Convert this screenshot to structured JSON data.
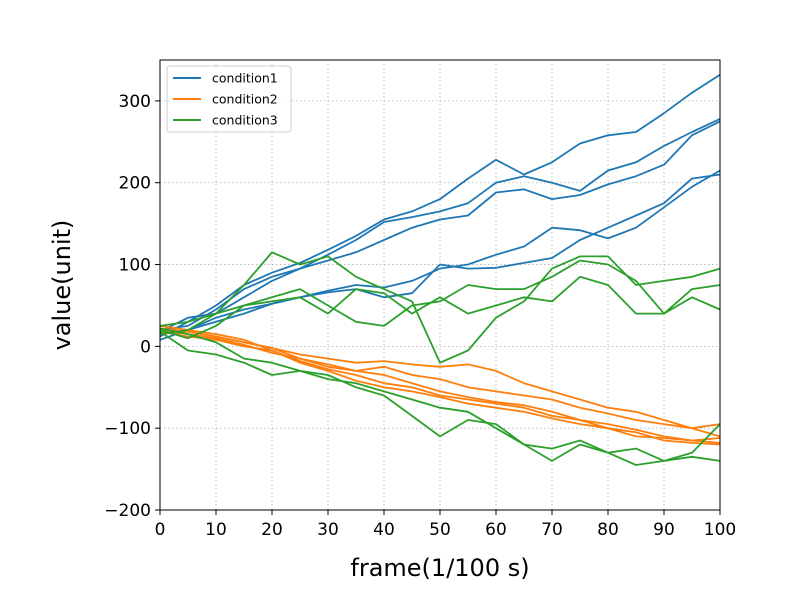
{
  "chart_data": {
    "type": "line",
    "title": "",
    "xlabel": "frame(1/100 s)",
    "ylabel": "value(unit)",
    "xlim": [
      0,
      100
    ],
    "ylim": [
      -200,
      350
    ],
    "xticks": [
      0,
      10,
      20,
      30,
      40,
      50,
      60,
      70,
      80,
      90,
      100
    ],
    "yticks": [
      -200,
      -100,
      0,
      100,
      200,
      300
    ],
    "ytick_labels": [
      "−200",
      "−100",
      "0",
      "100",
      "200",
      "300"
    ],
    "grid": true,
    "legend_position": "top-left",
    "legend": [
      {
        "label": "condition1",
        "color": "#1f77b4"
      },
      {
        "label": "condition2",
        "color": "#ff7f0e"
      },
      {
        "label": "condition3",
        "color": "#2ca02c"
      }
    ],
    "series": [
      {
        "group": "condition1",
        "color": "#1f77b4",
        "x": [
          0,
          5,
          10,
          15,
          20,
          25,
          30,
          35,
          40,
          45,
          50,
          55,
          60,
          65,
          70,
          75,
          80,
          85,
          90,
          95,
          100
        ],
        "y": [
          12,
          30,
          50,
          75,
          90,
          102,
          118,
          135,
          155,
          165,
          180,
          205,
          228,
          210,
          225,
          248,
          258,
          262,
          285,
          310,
          332
        ]
      },
      {
        "group": "condition1",
        "color": "#1f77b4",
        "x": [
          0,
          5,
          10,
          15,
          20,
          25,
          30,
          35,
          40,
          45,
          50,
          55,
          60,
          65,
          70,
          75,
          80,
          85,
          90,
          95,
          100
        ],
        "y": [
          18,
          35,
          40,
          60,
          80,
          95,
          112,
          130,
          152,
          158,
          165,
          175,
          200,
          208,
          200,
          190,
          215,
          225,
          245,
          262,
          278
        ]
      },
      {
        "group": "condition1",
        "color": "#1f77b4",
        "x": [
          0,
          5,
          10,
          15,
          20,
          25,
          30,
          35,
          40,
          45,
          50,
          55,
          60,
          65,
          70,
          75,
          80,
          85,
          90,
          95,
          100
        ],
        "y": [
          20,
          25,
          45,
          70,
          85,
          95,
          105,
          115,
          130,
          145,
          155,
          160,
          188,
          192,
          180,
          185,
          198,
          208,
          222,
          258,
          275
        ]
      },
      {
        "group": "condition1",
        "color": "#1f77b4",
        "x": [
          0,
          5,
          10,
          15,
          20,
          25,
          30,
          35,
          40,
          45,
          50,
          55,
          60,
          65,
          70,
          75,
          80,
          85,
          90,
          95,
          100
        ],
        "y": [
          8,
          20,
          30,
          40,
          52,
          60,
          68,
          75,
          72,
          80,
          95,
          100,
          112,
          122,
          145,
          142,
          132,
          145,
          170,
          195,
          215
        ]
      },
      {
        "group": "condition1",
        "color": "#1f77b4",
        "x": [
          0,
          5,
          10,
          15,
          20,
          25,
          30,
          35,
          40,
          45,
          50,
          55,
          60,
          65,
          70,
          75,
          80,
          85,
          90,
          95,
          100
        ],
        "y": [
          15,
          20,
          35,
          45,
          52,
          60,
          66,
          70,
          60,
          65,
          100,
          95,
          96,
          102,
          108,
          130,
          145,
          160,
          175,
          205,
          210
        ]
      },
      {
        "group": "condition2",
        "color": "#ff7f0e",
        "x": [
          0,
          5,
          10,
          15,
          20,
          25,
          30,
          35,
          40,
          45,
          50,
          55,
          60,
          65,
          70,
          75,
          80,
          85,
          90,
          95,
          100
        ],
        "y": [
          22,
          18,
          12,
          5,
          -2,
          -10,
          -15,
          -20,
          -18,
          -22,
          -25,
          -22,
          -30,
          -45,
          -55,
          -65,
          -75,
          -80,
          -90,
          -100,
          -110
        ]
      },
      {
        "group": "condition2",
        "color": "#ff7f0e",
        "x": [
          0,
          5,
          10,
          15,
          20,
          25,
          30,
          35,
          40,
          45,
          50,
          55,
          60,
          65,
          70,
          75,
          80,
          85,
          90,
          95,
          100
        ],
        "y": [
          20,
          15,
          10,
          2,
          -8,
          -15,
          -22,
          -30,
          -25,
          -35,
          -40,
          -50,
          -55,
          -60,
          -65,
          -75,
          -82,
          -90,
          -95,
          -100,
          -95
        ]
      },
      {
        "group": "condition2",
        "color": "#ff7f0e",
        "x": [
          0,
          5,
          10,
          15,
          20,
          25,
          30,
          35,
          40,
          45,
          50,
          55,
          60,
          65,
          70,
          75,
          80,
          85,
          90,
          95,
          100
        ],
        "y": [
          18,
          12,
          8,
          0,
          -5,
          -18,
          -28,
          -35,
          -45,
          -50,
          -60,
          -65,
          -70,
          -75,
          -85,
          -90,
          -100,
          -105,
          -115,
          -118,
          -120
        ]
      },
      {
        "group": "condition2",
        "color": "#ff7f0e",
        "x": [
          0,
          5,
          10,
          15,
          20,
          25,
          30,
          35,
          40,
          45,
          50,
          55,
          60,
          65,
          70,
          75,
          80,
          85,
          90,
          95,
          100
        ],
        "y": [
          25,
          20,
          15,
          8,
          -5,
          -20,
          -30,
          -42,
          -50,
          -55,
          -62,
          -70,
          -75,
          -80,
          -88,
          -95,
          -100,
          -110,
          -112,
          -115,
          -118
        ]
      },
      {
        "group": "condition2",
        "color": "#ff7f0e",
        "x": [
          0,
          5,
          10,
          15,
          20,
          25,
          30,
          35,
          40,
          45,
          50,
          55,
          60,
          65,
          70,
          75,
          80,
          85,
          90,
          95,
          100
        ],
        "y": [
          15,
          18,
          12,
          5,
          -2,
          -15,
          -25,
          -30,
          -35,
          -45,
          -55,
          -62,
          -68,
          -72,
          -80,
          -90,
          -95,
          -102,
          -110,
          -115,
          -112
        ]
      },
      {
        "group": "condition3",
        "color": "#2ca02c",
        "x": [
          0,
          5,
          10,
          15,
          20,
          25,
          30,
          35,
          40,
          45,
          50,
          55,
          60,
          65,
          70,
          75,
          80,
          85,
          90,
          95,
          100
        ],
        "y": [
          25,
          30,
          40,
          75,
          115,
          100,
          110,
          85,
          70,
          55,
          -20,
          -5,
          35,
          55,
          95,
          110,
          110,
          75,
          80,
          85,
          95
        ]
      },
      {
        "group": "condition3",
        "color": "#2ca02c",
        "x": [
          0,
          5,
          10,
          15,
          20,
          25,
          30,
          35,
          40,
          45,
          50,
          55,
          60,
          65,
          70,
          75,
          80,
          85,
          90,
          95,
          100
        ],
        "y": [
          20,
          10,
          25,
          50,
          60,
          70,
          50,
          30,
          25,
          50,
          55,
          75,
          70,
          70,
          85,
          105,
          100,
          80,
          40,
          70,
          75
        ]
      },
      {
        "group": "condition3",
        "color": "#2ca02c",
        "x": [
          0,
          5,
          10,
          15,
          20,
          25,
          30,
          35,
          40,
          45,
          50,
          55,
          60,
          65,
          70,
          75,
          80,
          85,
          90,
          95,
          100
        ],
        "y": [
          15,
          20,
          40,
          50,
          55,
          60,
          40,
          70,
          65,
          40,
          60,
          40,
          50,
          60,
          55,
          85,
          75,
          40,
          40,
          60,
          45
        ]
      },
      {
        "group": "condition3",
        "color": "#2ca02c",
        "x": [
          0,
          5,
          10,
          15,
          20,
          25,
          30,
          35,
          40,
          45,
          50,
          55,
          60,
          65,
          70,
          75,
          80,
          85,
          90,
          95,
          100
        ],
        "y": [
          18,
          -5,
          -10,
          -20,
          -35,
          -30,
          -35,
          -50,
          -60,
          -85,
          -110,
          -90,
          -95,
          -120,
          -125,
          -115,
          -130,
          -125,
          -140,
          -135,
          -140
        ]
      },
      {
        "group": "condition3",
        "color": "#2ca02c",
        "x": [
          0,
          5,
          10,
          15,
          20,
          25,
          30,
          35,
          40,
          45,
          50,
          55,
          60,
          65,
          70,
          75,
          80,
          85,
          90,
          95,
          100
        ],
        "y": [
          22,
          15,
          5,
          -15,
          -20,
          -30,
          -40,
          -45,
          -55,
          -65,
          -75,
          -80,
          -100,
          -120,
          -140,
          -120,
          -130,
          -145,
          -140,
          -130,
          -95
        ]
      }
    ]
  }
}
